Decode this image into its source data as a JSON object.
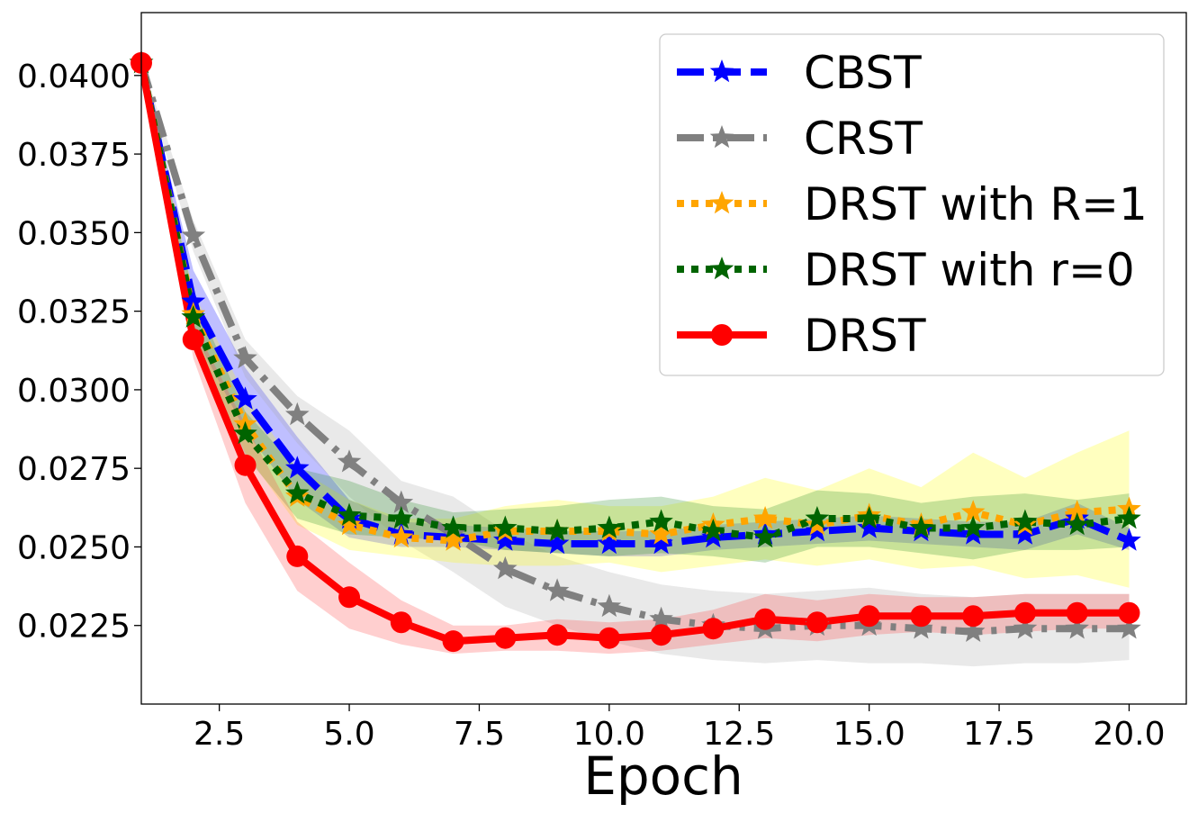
{
  "chart_data": {
    "type": "line",
    "title": "",
    "xlabel": "Epoch",
    "ylabel": "",
    "xlim": [
      1,
      21.1
    ],
    "ylim": [
      0.02,
      0.042
    ],
    "xticks": [
      "2.5",
      "5.0",
      "7.5",
      "10.0",
      "12.5",
      "15.0",
      "17.5",
      "20.0"
    ],
    "yticks": [
      "0.0225",
      "0.0250",
      "0.0275",
      "0.0300",
      "0.0325",
      "0.0350",
      "0.0375",
      "0.0400"
    ],
    "legend_position": "top-right",
    "x": [
      1,
      2,
      3,
      4,
      5,
      6,
      7,
      8,
      9,
      10,
      11,
      12,
      13,
      14,
      15,
      16,
      17,
      18,
      19,
      20
    ],
    "series": [
      {
        "name": "CBST",
        "color": "#0000ff",
        "band_color": "#0000ff",
        "linestyle": "dashed",
        "marker": "star",
        "values": [
          0.0404,
          0.0328,
          0.0297,
          0.0275,
          0.0259,
          0.0254,
          0.0253,
          0.0252,
          0.0251,
          0.0251,
          0.0251,
          0.0253,
          0.0254,
          0.0255,
          0.0256,
          0.0255,
          0.0254,
          0.0254,
          0.0259,
          0.0252
        ],
        "lower": [
          0.0403,
          0.0318,
          0.0287,
          0.0265,
          0.0253,
          0.025,
          0.025,
          0.0249,
          0.0248,
          0.0247,
          0.0247,
          0.0249,
          0.025,
          0.0251,
          0.0252,
          0.0251,
          0.025,
          0.0249,
          0.0254,
          0.0249
        ],
        "upper": [
          0.0405,
          0.0338,
          0.0307,
          0.0285,
          0.0265,
          0.0258,
          0.0257,
          0.0256,
          0.0255,
          0.0255,
          0.0255,
          0.0257,
          0.0258,
          0.0259,
          0.026,
          0.0259,
          0.0258,
          0.0258,
          0.0264,
          0.0256
        ]
      },
      {
        "name": "CRST",
        "color": "#808080",
        "band_color": "#a9a9a9",
        "linestyle": "dashdot",
        "marker": "star",
        "values": [
          0.0404,
          0.0349,
          0.031,
          0.0292,
          0.0277,
          0.0264,
          0.0254,
          0.0243,
          0.0236,
          0.0231,
          0.0227,
          0.0225,
          0.0224,
          0.0225,
          0.0225,
          0.0224,
          0.0223,
          0.0224,
          0.0224,
          0.0224
        ],
        "lower": [
          0.0403,
          0.0344,
          0.0304,
          0.0283,
          0.0266,
          0.0252,
          0.0242,
          0.0231,
          0.0225,
          0.022,
          0.0216,
          0.0214,
          0.0213,
          0.0214,
          0.0213,
          0.0213,
          0.0212,
          0.0213,
          0.0213,
          0.0214
        ],
        "upper": [
          0.0405,
          0.0354,
          0.0316,
          0.0298,
          0.0287,
          0.0271,
          0.0266,
          0.0255,
          0.0247,
          0.0242,
          0.0238,
          0.0236,
          0.0235,
          0.0236,
          0.0237,
          0.0235,
          0.0234,
          0.0235,
          0.0235,
          0.0235
        ]
      },
      {
        "name": "DRST with R=1",
        "color": "#ffa500",
        "band_color": "#ffff00",
        "linestyle": "dotted",
        "marker": "star",
        "values": [
          0.0404,
          0.0324,
          0.0289,
          0.0266,
          0.0257,
          0.0253,
          0.0252,
          0.0255,
          0.0255,
          0.0255,
          0.0254,
          0.0257,
          0.0259,
          0.0257,
          0.026,
          0.0257,
          0.0261,
          0.0257,
          0.0261,
          0.0262
        ],
        "lower": [
          0.0403,
          0.0317,
          0.028,
          0.0257,
          0.0249,
          0.0247,
          0.0245,
          0.0244,
          0.0244,
          0.0245,
          0.0242,
          0.0244,
          0.0246,
          0.0244,
          0.0246,
          0.0243,
          0.0244,
          0.024,
          0.0241,
          0.0237
        ],
        "upper": [
          0.0405,
          0.0331,
          0.0298,
          0.0275,
          0.0265,
          0.0259,
          0.0259,
          0.0263,
          0.0265,
          0.0263,
          0.0263,
          0.0266,
          0.0272,
          0.0268,
          0.0275,
          0.0269,
          0.028,
          0.0272,
          0.028,
          0.0287
        ]
      },
      {
        "name": "DRST with r=0",
        "color": "#006400",
        "band_color": "#228b22",
        "linestyle": "dotted",
        "marker": "star",
        "values": [
          0.0404,
          0.0323,
          0.0286,
          0.0267,
          0.026,
          0.0259,
          0.0256,
          0.0256,
          0.0255,
          0.0256,
          0.0258,
          0.0255,
          0.0253,
          0.0259,
          0.0259,
          0.0256,
          0.0256,
          0.0258,
          0.0257,
          0.0259
        ],
        "lower": [
          0.0403,
          0.0316,
          0.0279,
          0.0259,
          0.0254,
          0.0253,
          0.0252,
          0.0249,
          0.0248,
          0.0247,
          0.0248,
          0.0247,
          0.0245,
          0.025,
          0.025,
          0.0248,
          0.0246,
          0.0249,
          0.0249,
          0.025
        ],
        "upper": [
          0.0405,
          0.033,
          0.0293,
          0.0275,
          0.0271,
          0.0265,
          0.0261,
          0.0262,
          0.0263,
          0.0265,
          0.0266,
          0.0263,
          0.0262,
          0.0268,
          0.0267,
          0.0264,
          0.0266,
          0.0267,
          0.0265,
          0.0267
        ]
      },
      {
        "name": "DRST",
        "color": "#ff0000",
        "band_color": "#ff4040",
        "linestyle": "solid",
        "marker": "circle",
        "values": [
          0.0404,
          0.0316,
          0.0276,
          0.0247,
          0.0234,
          0.0226,
          0.022,
          0.0221,
          0.0222,
          0.0221,
          0.0222,
          0.0224,
          0.0227,
          0.0226,
          0.0228,
          0.0228,
          0.0228,
          0.0229,
          0.0229,
          0.0229
        ],
        "lower": [
          0.0403,
          0.031,
          0.0264,
          0.0236,
          0.0224,
          0.0219,
          0.0216,
          0.0217,
          0.0217,
          0.0216,
          0.0217,
          0.0219,
          0.0221,
          0.022,
          0.0222,
          0.0223,
          0.0222,
          0.0223,
          0.0224,
          0.0224
        ],
        "upper": [
          0.0405,
          0.0321,
          0.0289,
          0.0258,
          0.0245,
          0.0233,
          0.0225,
          0.0225,
          0.0227,
          0.0226,
          0.0227,
          0.023,
          0.0235,
          0.0233,
          0.0235,
          0.0234,
          0.0234,
          0.0235,
          0.0235,
          0.0235
        ]
      }
    ]
  }
}
